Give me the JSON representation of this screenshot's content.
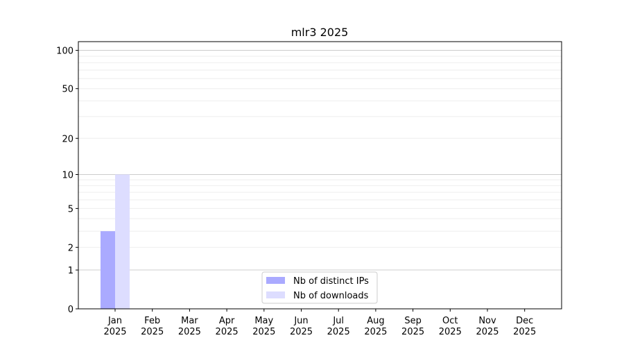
{
  "chart_data": {
    "type": "bar",
    "title": "mlr3 2025",
    "xlabel": "",
    "ylabel": "",
    "yscale": "log(1+y)",
    "ylim": [
      0,
      117
    ],
    "grid": true,
    "legend_position": "bottom-center",
    "categories": [
      "Jan\n2025",
      "Feb\n2025",
      "Mar\n2025",
      "Apr\n2025",
      "May\n2025",
      "Jun\n2025",
      "Jul\n2025",
      "Aug\n2025",
      "Sep\n2025",
      "Oct\n2025",
      "Nov\n2025",
      "Dec\n2025"
    ],
    "yticks": [
      0,
      1,
      2,
      5,
      10,
      20,
      50,
      100
    ],
    "series": [
      {
        "name": "Nb of distinct IPs",
        "color": "#aaaaff",
        "values": [
          3,
          0,
          0,
          0,
          0,
          0,
          0,
          0,
          0,
          0,
          0,
          0
        ]
      },
      {
        "name": "Nb of downloads",
        "color": "#ddddff",
        "values": [
          10,
          0,
          0,
          0,
          0,
          0,
          0,
          0,
          0,
          0,
          0,
          0
        ]
      }
    ]
  }
}
